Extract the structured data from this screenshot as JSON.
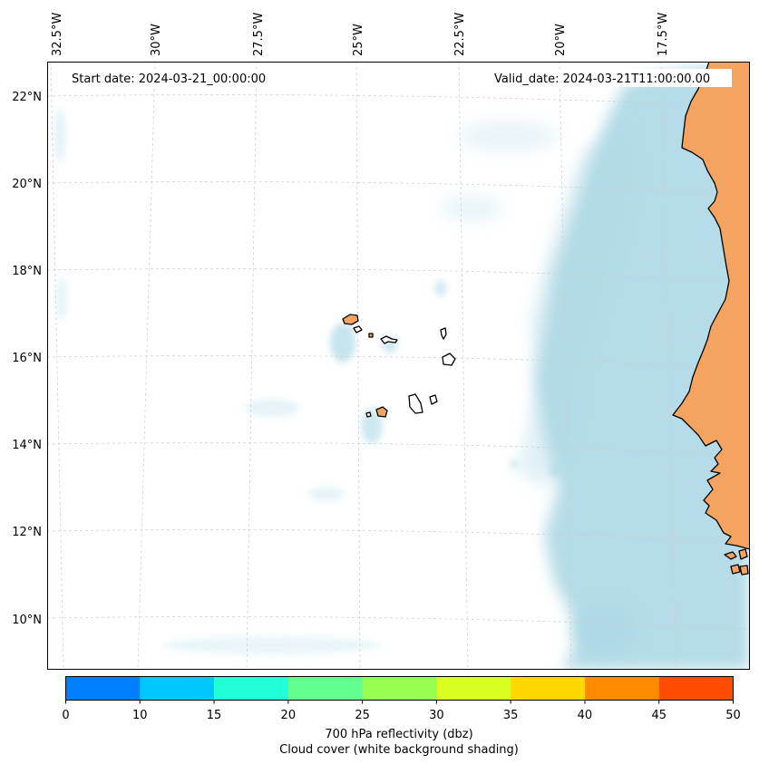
{
  "map": {
    "start_date": "Start date: 2024-03-21_00:00:00",
    "valid_date": "Valid_date: 2024-03-21T11:00:00.00",
    "lon_labels": [
      "32.5°W",
      "30°W",
      "27.5°W",
      "25°W",
      "22.5°W",
      "20°W",
      "17.5°W"
    ],
    "lat_labels": [
      "22°N",
      "20°N",
      "18°N",
      "16°N",
      "14°N",
      "12°N",
      "10°N"
    ],
    "colors": {
      "land": "#f4a460",
      "cloud": "#add8e6",
      "coastline": "#000000",
      "grid": "#cccccc"
    }
  },
  "colorbar": {
    "ticks": [
      "0",
      "10",
      "15",
      "20",
      "25",
      "30",
      "35",
      "40",
      "45",
      "50"
    ],
    "colors": [
      "#0080ff",
      "#00c8ff",
      "#20ffd8",
      "#60ff90",
      "#98ff50",
      "#d8ff20",
      "#ffd800",
      "#ff8c00",
      "#ff4c00"
    ],
    "label1": "700 hPa reflectivity (dbz)",
    "label2": "Cloud cover (white background shading)"
  }
}
